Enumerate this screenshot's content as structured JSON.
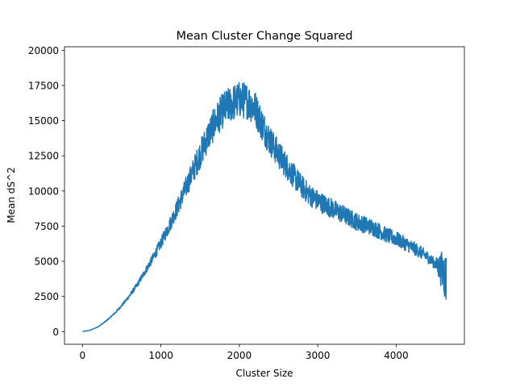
{
  "chart_data": {
    "type": "line",
    "title": "Mean Cluster Change Squared",
    "xlabel": "Cluster Size",
    "ylabel": "Mean dS^2",
    "xlim": [
      -230,
      4870
    ],
    "ylim": [
      -900,
      20250
    ],
    "xticks": [
      0,
      1000,
      2000,
      3000,
      4000
    ],
    "xtick_labels": [
      "0",
      "1000",
      "2000",
      "3000",
      "4000"
    ],
    "yticks": [
      0,
      2500,
      5000,
      7500,
      10000,
      12500,
      15000,
      17500,
      20000
    ],
    "ytick_labels": [
      "0",
      "2500",
      "5000",
      "7500",
      "10000",
      "12500",
      "15000",
      "17500",
      "20000"
    ],
    "grid": false,
    "legend": "none",
    "series": [
      {
        "color": "#1f77b4",
        "x": [
          0,
          100,
          200,
          300,
          400,
          500,
          600,
          700,
          800,
          900,
          1000,
          1100,
          1200,
          1300,
          1400,
          1500,
          1600,
          1700,
          1800,
          1900,
          2000,
          2100,
          2200,
          2300,
          2400,
          2500,
          2600,
          2700,
          2800,
          2900,
          3000,
          3100,
          3200,
          3300,
          3400,
          3500,
          3600,
          3700,
          3800,
          3900,
          4000,
          4100,
          4200,
          4300,
          4400,
          4500,
          4600,
          4640
        ],
        "y": [
          0,
          100,
          350,
          750,
          1250,
          1850,
          2550,
          3350,
          4300,
          5250,
          6300,
          7450,
          8700,
          10000,
          11300,
          12600,
          13900,
          15000,
          15800,
          16200,
          16500,
          16400,
          15900,
          14600,
          13500,
          12600,
          11800,
          11000,
          10300,
          9700,
          9300,
          9000,
          8700,
          8400,
          8100,
          7800,
          7600,
          7400,
          7100,
          6800,
          6600,
          6300,
          6000,
          5700,
          5300,
          4800,
          4300,
          3700
        ]
      }
    ]
  }
}
